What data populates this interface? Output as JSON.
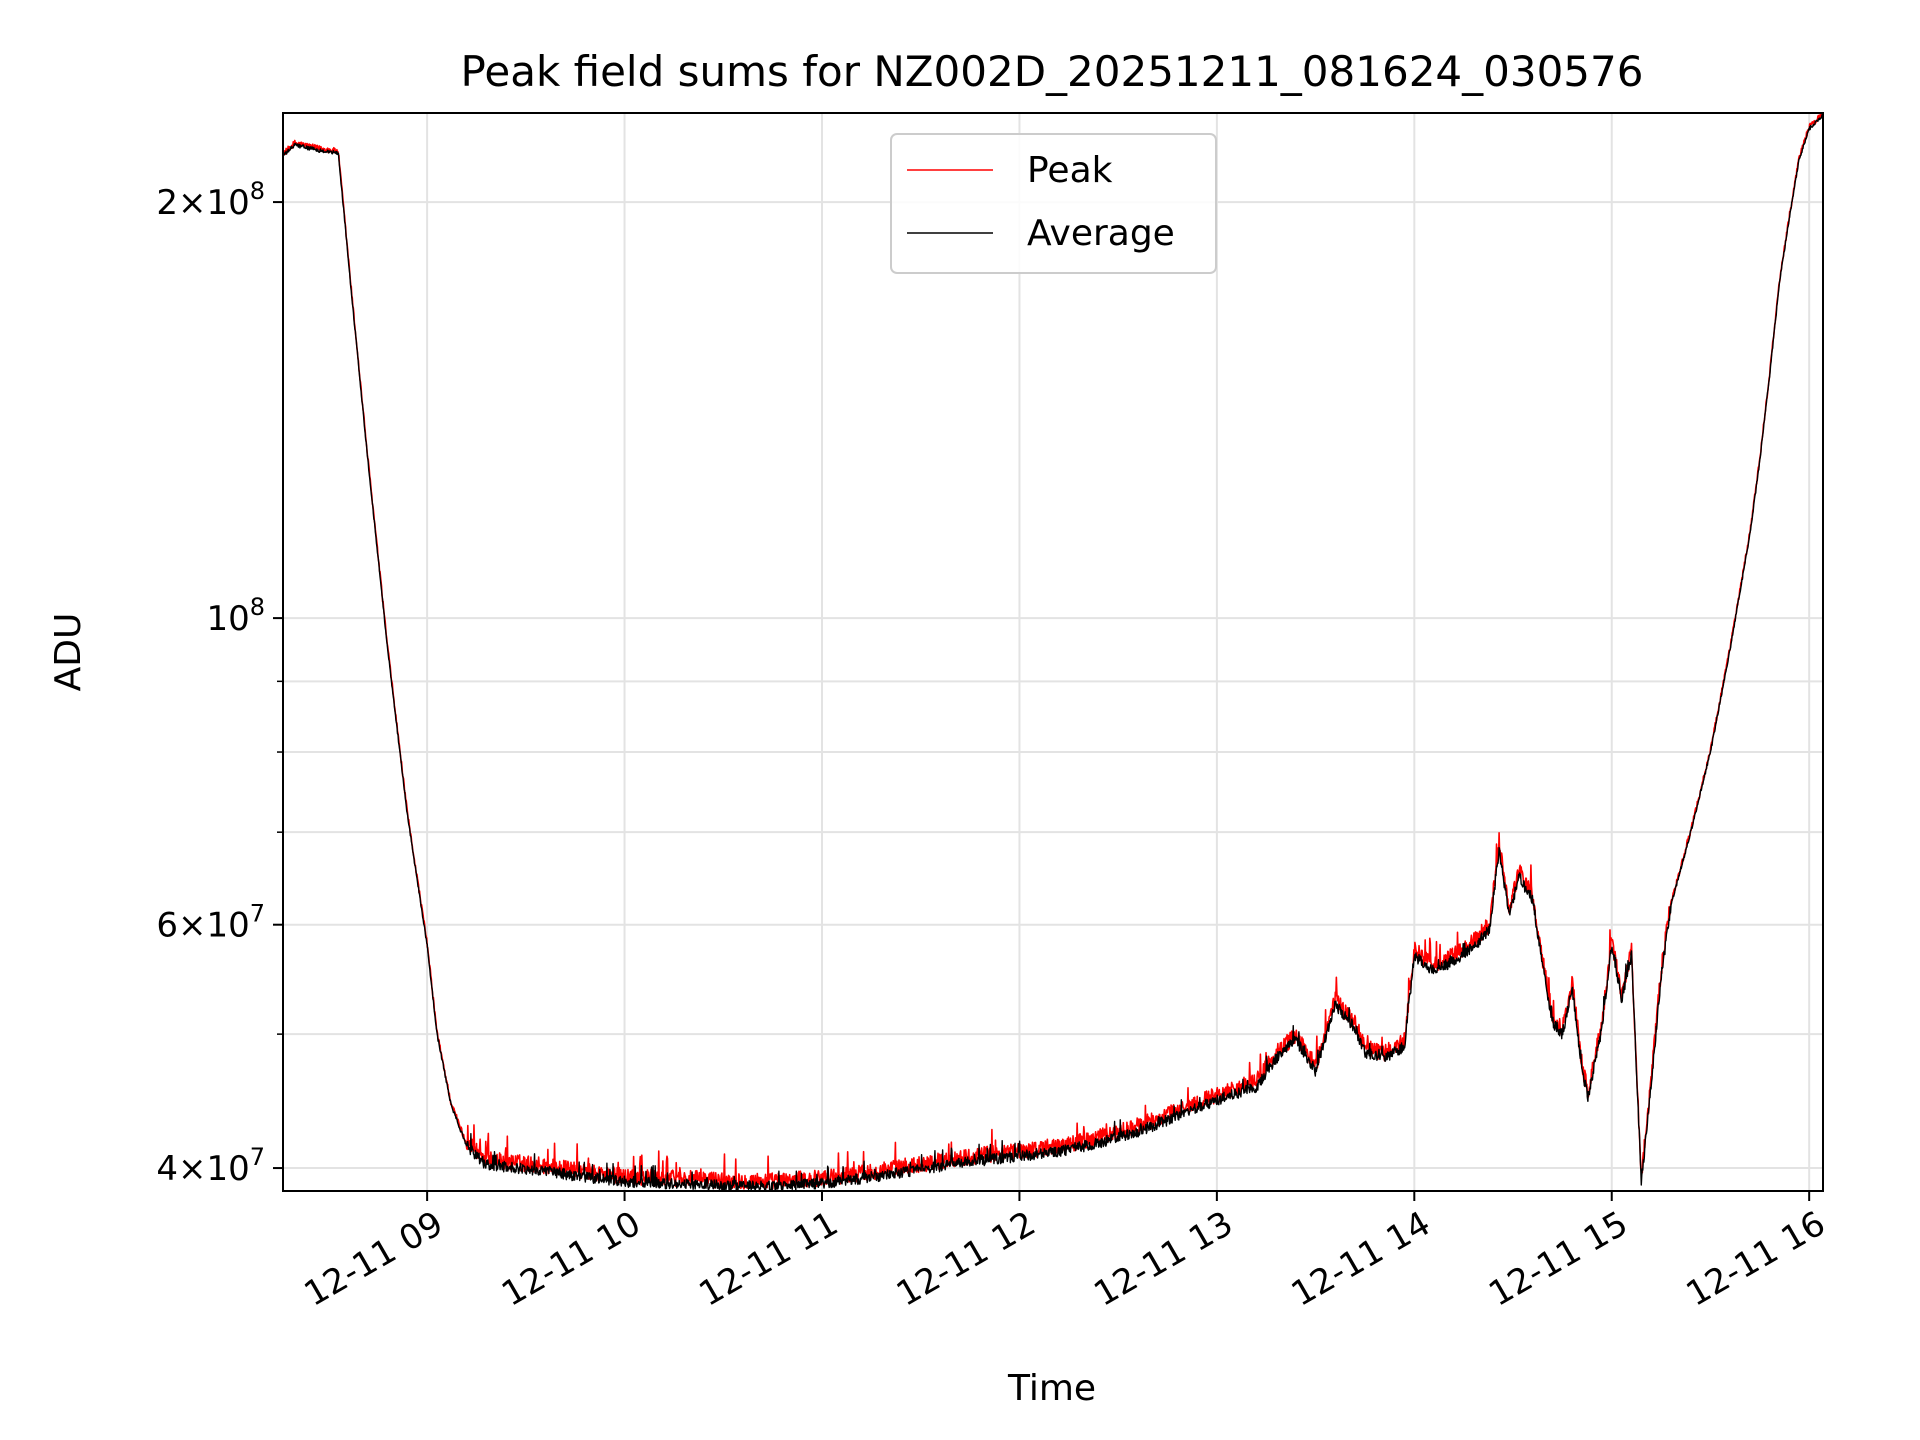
{
  "chart_data": {
    "type": "line",
    "title": "Peak field sums for NZ002D_20251211_081624_030576",
    "xlabel": "Time",
    "ylabel": "ADU",
    "yscale": "log",
    "grid": true,
    "legend_position": "top-center",
    "xlim": [
      8.27,
      16.07
    ],
    "ylim": [
      38500000,
      232000000
    ],
    "x_unit": "hours (2025-12-11)",
    "x_ticks": [
      {
        "value": 9,
        "label": "12-11 09"
      },
      {
        "value": 10,
        "label": "12-11 10"
      },
      {
        "value": 11,
        "label": "12-11 11"
      },
      {
        "value": 12,
        "label": "12-11 12"
      },
      {
        "value": 13,
        "label": "12-11 13"
      },
      {
        "value": 14,
        "label": "12-11 14"
      },
      {
        "value": 15,
        "label": "12-11 15"
      },
      {
        "value": 16,
        "label": "12-11 16"
      }
    ],
    "y_major_ticks": [
      {
        "value": 40000000,
        "mantissa": "4",
        "exponent": "7"
      },
      {
        "value": 60000000,
        "mantissa": "6",
        "exponent": "7"
      },
      {
        "value": 100000000,
        "mantissa": "",
        "exponent": "8"
      },
      {
        "value": 200000000,
        "mantissa": "2",
        "exponent": "8"
      }
    ],
    "y_minor_ticks": [
      50000000,
      70000000,
      80000000,
      90000000
    ],
    "series": [
      {
        "name": "Peak",
        "color": "#ff0000",
        "noise_amplitude": 0.006,
        "noise_bias": 0.004
      },
      {
        "name": "Average",
        "color": "#000000",
        "x": [
          8.27,
          8.33,
          8.45,
          8.55,
          8.62,
          8.7,
          8.8,
          8.9,
          9.0,
          9.05,
          9.12,
          9.2,
          9.3,
          9.45,
          9.6,
          9.8,
          10.0,
          10.2,
          10.4,
          10.6,
          10.8,
          11.0,
          11.2,
          11.4,
          11.6,
          11.8,
          12.0,
          12.2,
          12.4,
          12.6,
          12.8,
          13.0,
          13.2,
          13.3,
          13.4,
          13.5,
          13.6,
          13.7,
          13.75,
          13.85,
          13.95,
          14.0,
          14.1,
          14.2,
          14.3,
          14.38,
          14.43,
          14.48,
          14.53,
          14.6,
          14.65,
          14.7,
          14.75,
          14.8,
          14.85,
          14.88,
          14.95,
          15.0,
          15.05,
          15.1,
          15.15,
          15.2,
          15.25,
          15.3,
          15.4,
          15.5,
          15.6,
          15.7,
          15.75,
          15.8,
          15.85,
          15.9,
          15.95,
          16.0,
          16.07
        ],
        "y": [
          216000000,
          220000000,
          218000000,
          217000000,
          170000000,
          130000000,
          95000000,
          72000000,
          58000000,
          50000000,
          44500000,
          41500000,
          40200000,
          40000000,
          39800000,
          39400000,
          39100000,
          39000000,
          38900000,
          38800000,
          38800000,
          39000000,
          39300000,
          39700000,
          40100000,
          40500000,
          40800000,
          41100000,
          41700000,
          42500000,
          43600000,
          44800000,
          45800000,
          48000000,
          49500000,
          47000000,
          52500000,
          50500000,
          48500000,
          48000000,
          49000000,
          57000000,
          55500000,
          56500000,
          57800000,
          59500000,
          68000000,
          61000000,
          65000000,
          62500000,
          56000000,
          51000000,
          50000000,
          54000000,
          47000000,
          45000000,
          50500000,
          58000000,
          53000000,
          57000000,
          39000000,
          46000000,
          55000000,
          62000000,
          70000000,
          80000000,
          95000000,
          115000000,
          130000000,
          150000000,
          175000000,
          195000000,
          215000000,
          226000000,
          231000000
        ],
        "noise_amplitude": 0.004,
        "noise_bias": 0.0
      }
    ]
  }
}
